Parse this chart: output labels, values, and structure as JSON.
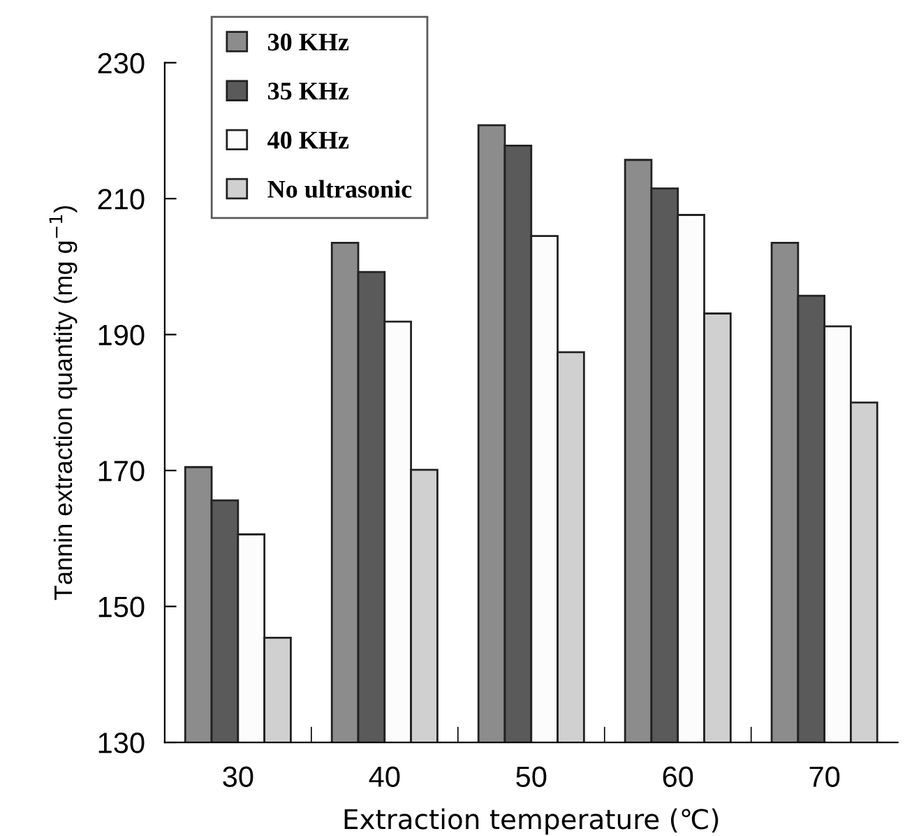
{
  "chart_data": {
    "type": "bar",
    "xlabel": "Extraction temperature (℃)",
    "ylabel": "Tannin extraction quantity (mg g$^{−1}$)",
    "categories": [
      "30",
      "40",
      "50",
      "60",
      "70"
    ],
    "series": [
      {
        "name": "30 KHz",
        "color": "#8c8c8c",
        "values": [
          170.5,
          203.5,
          220.8,
          215.7,
          203.5
        ]
      },
      {
        "name": "35 KHz",
        "color": "#5a5a5a",
        "values": [
          165.6,
          199.2,
          217.8,
          211.5,
          195.7
        ]
      },
      {
        "name": "40 KHz",
        "color": "#fcfcfc",
        "values": [
          160.6,
          191.9,
          204.5,
          207.6,
          191.2
        ]
      },
      {
        "name": "No ultrasonic",
        "color": "#d0d0d0",
        "values": [
          145.4,
          170.1,
          187.4,
          193.1,
          180.0
        ]
      }
    ],
    "ylim": [
      130,
      230
    ],
    "yticks": [
      130,
      150,
      170,
      190,
      210,
      230
    ],
    "grid": false,
    "legend": "top left"
  }
}
